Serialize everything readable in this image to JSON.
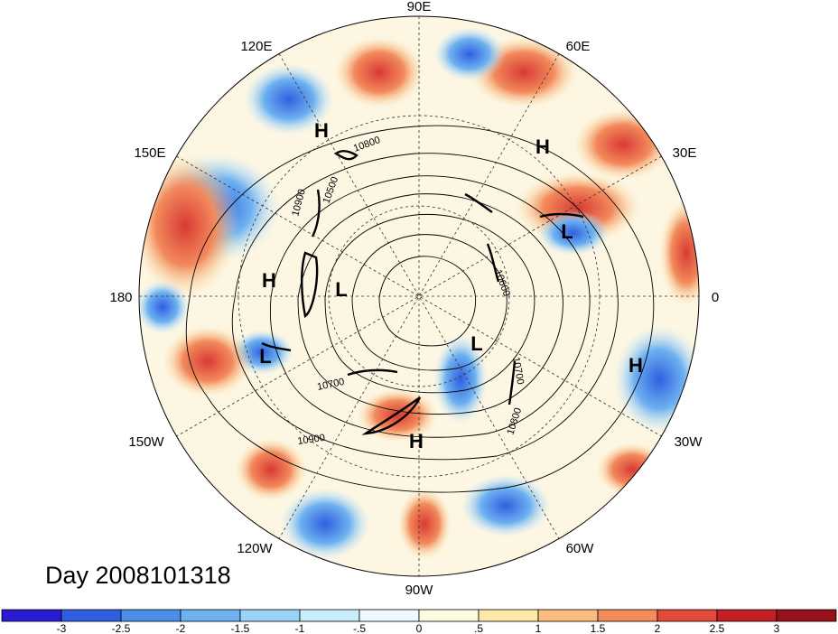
{
  "title": "Day 2008101318",
  "longitude_labels": [
    "90E",
    "60E",
    "30E",
    "0",
    "30W",
    "60W",
    "90W",
    "120W",
    "150W",
    "180",
    "150E",
    "120E"
  ],
  "pressure_systems": [
    {
      "label": "H",
      "name": "high-east-siberia"
    },
    {
      "label": "H",
      "name": "high-scandinavia"
    },
    {
      "label": "L",
      "name": "low-europe"
    },
    {
      "label": "H",
      "name": "high-bering"
    },
    {
      "label": "L",
      "name": "low-alaska"
    },
    {
      "label": "L",
      "name": "low-north-pacific"
    },
    {
      "label": "L",
      "name": "low-hudson"
    },
    {
      "label": "H",
      "name": "high-atlantic"
    },
    {
      "label": "H",
      "name": "high-north-america"
    }
  ],
  "contour_labels": [
    "10800",
    "10500",
    "10900",
    "10600",
    "10700",
    "10800",
    "10700",
    "10900"
  ],
  "colorbar": {
    "tick_labels": [
      "-3",
      "-2.5",
      "-2",
      "-1.5",
      "-1",
      "-.5",
      "0",
      ".5",
      "1",
      "1.5",
      "2",
      "2.5",
      "3"
    ],
    "colors": [
      "#2a1ad4",
      "#2f5fe0",
      "#4a8ee8",
      "#6db1f0",
      "#9ad3f7",
      "#c9edfb",
      "#eefaff",
      "#fffbe0",
      "#fde8aa",
      "#fbbd7e",
      "#f48c5a",
      "#e24a3b",
      "#c21f27",
      "#98101a"
    ]
  }
}
